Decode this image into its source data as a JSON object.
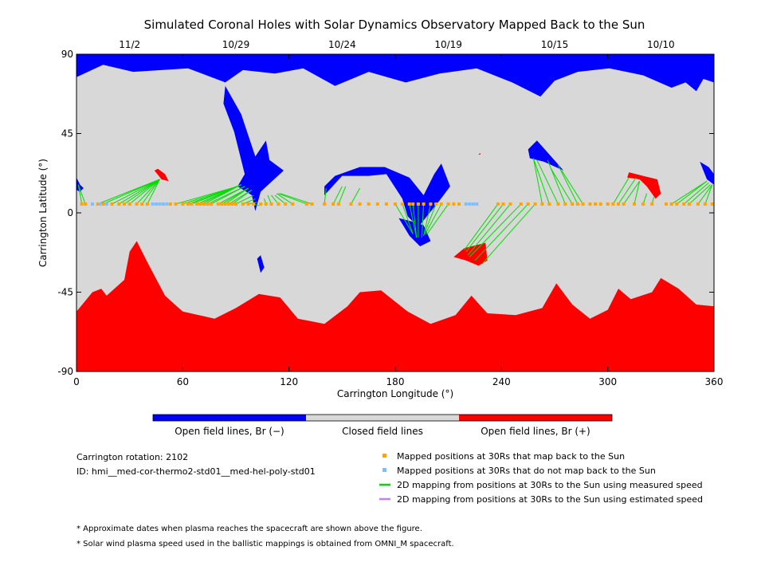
{
  "chart_data": {
    "type": "map",
    "title": "Simulated Coronal Holes with Solar Dynamics Observatory Mapped Back to the Sun",
    "xlabel": "Carrington Longitude (°)",
    "ylabel": "Carrington Latitude (°)",
    "xlim": [
      0,
      360
    ],
    "ylim": [
      -90,
      90
    ],
    "x_ticks": [
      0,
      60,
      120,
      180,
      240,
      300,
      360
    ],
    "y_ticks": [
      90,
      45,
      0,
      -45,
      -90
    ],
    "date_ticks": [
      {
        "label": "11/2",
        "lon": 30
      },
      {
        "label": "10/29",
        "lon": 90
      },
      {
        "label": "10/24",
        "lon": 150
      },
      {
        "label": "10/19",
        "lon": 210
      },
      {
        "label": "10/15",
        "lon": 270
      },
      {
        "label": "10/10",
        "lon": 330
      }
    ],
    "colors": {
      "open_negative": "#0000ff",
      "closed": "#d8d8d8",
      "open_positive": "#ff0000",
      "mapped_point": "#ffa500",
      "unmapped_point": "#80bfff",
      "measured_line": "#00dd00",
      "estimated_line": "#c080ff"
    },
    "colorbar": [
      {
        "label": "Open field lines, Br (−)",
        "color": "#0000ff"
      },
      {
        "label": "Closed field lines",
        "color": "#d8d8d8"
      },
      {
        "label": "Open field lines, Br (+)",
        "color": "#ff0000"
      }
    ],
    "regions": {
      "open_negative": [
        [
          [
            0,
            90
          ],
          [
            360,
            90
          ],
          [
            360,
            74
          ],
          [
            354,
            76
          ],
          [
            350,
            69
          ],
          [
            344,
            74
          ],
          [
            336,
            71
          ],
          [
            320,
            78
          ],
          [
            301,
            82
          ],
          [
            283,
            80
          ],
          [
            270,
            75
          ],
          [
            262,
            66
          ],
          [
            246,
            74
          ],
          [
            226,
            82
          ],
          [
            205,
            79
          ],
          [
            186,
            74
          ],
          [
            165,
            80
          ],
          [
            146,
            72
          ],
          [
            128,
            82
          ],
          [
            112,
            79
          ],
          [
            94,
            81
          ],
          [
            84,
            74
          ],
          [
            63,
            82
          ],
          [
            32,
            80
          ],
          [
            15,
            84
          ],
          [
            0,
            77
          ]
        ],
        [
          [
            84,
            72
          ],
          [
            93,
            56
          ],
          [
            101,
            32
          ],
          [
            107,
            41
          ],
          [
            109,
            30
          ],
          [
            117,
            24
          ],
          [
            104,
            12
          ],
          [
            101,
            1
          ],
          [
            99,
            10
          ],
          [
            91,
            15
          ],
          [
            95,
            22
          ],
          [
            89,
            46
          ],
          [
            83,
            62
          ]
        ],
        [
          [
            140,
            15
          ],
          [
            146,
            21
          ],
          [
            160,
            26
          ],
          [
            174,
            26
          ],
          [
            188,
            20
          ],
          [
            196,
            10
          ],
          [
            202,
            22
          ],
          [
            206,
            28
          ],
          [
            211,
            15
          ],
          [
            205,
            7
          ],
          [
            193,
            -8
          ],
          [
            187,
            -2
          ],
          [
            184,
            8
          ],
          [
            175,
            22
          ],
          [
            165,
            21
          ],
          [
            150,
            21
          ],
          [
            140,
            10
          ]
        ],
        [
          [
            182,
            -3
          ],
          [
            188,
            -13
          ],
          [
            194,
            -19
          ],
          [
            200,
            -16
          ],
          [
            196,
            -7
          ],
          [
            190,
            -5
          ]
        ],
        [
          [
            102,
            -26
          ],
          [
            104,
            -34
          ],
          [
            106,
            -31
          ],
          [
            104,
            -24
          ]
        ],
        [
          [
            255,
            36
          ],
          [
            260,
            41
          ],
          [
            268,
            32
          ],
          [
            275,
            24
          ],
          [
            264,
            29
          ],
          [
            256,
            31
          ]
        ],
        [
          [
            0,
            20
          ],
          [
            2,
            16
          ],
          [
            4,
            14
          ],
          [
            2,
            12
          ],
          [
            0,
            13
          ]
        ],
        [
          [
            352,
            29
          ],
          [
            356,
            19
          ],
          [
            360,
            16
          ],
          [
            360,
            22
          ],
          [
            357,
            26
          ]
        ]
      ],
      "open_positive": [
        [
          [
            0,
            -90
          ],
          [
            360,
            -90
          ],
          [
            360,
            -53
          ],
          [
            350,
            -52
          ],
          [
            340,
            -43
          ],
          [
            330,
            -37
          ],
          [
            325,
            -45
          ],
          [
            313,
            -49
          ],
          [
            306,
            -43
          ],
          [
            300,
            -55
          ],
          [
            290,
            -60
          ],
          [
            280,
            -52
          ],
          [
            271,
            -40
          ],
          [
            263,
            -54
          ],
          [
            248,
            -58
          ],
          [
            232,
            -57
          ],
          [
            223,
            -47
          ],
          [
            214,
            -58
          ],
          [
            200,
            -63
          ],
          [
            187,
            -56
          ],
          [
            172,
            -44
          ],
          [
            160,
            -45
          ],
          [
            153,
            -53
          ],
          [
            140,
            -63
          ],
          [
            125,
            -60
          ],
          [
            115,
            -48
          ],
          [
            103,
            -46
          ],
          [
            90,
            -54
          ],
          [
            78,
            -60
          ],
          [
            60,
            -56
          ],
          [
            50,
            -47
          ],
          [
            40,
            -28
          ],
          [
            34,
            -16
          ],
          [
            30,
            -22
          ],
          [
            27,
            -38
          ],
          [
            17,
            -47
          ],
          [
            14,
            -43
          ],
          [
            9,
            -45
          ],
          [
            0,
            -56
          ]
        ],
        [
          [
            219,
            -20
          ],
          [
            231,
            -17
          ],
          [
            232,
            -27
          ],
          [
            227,
            -30
          ],
          [
            220,
            -27
          ],
          [
            213,
            -25
          ]
        ],
        [
          [
            312,
            23
          ],
          [
            320,
            21
          ],
          [
            328,
            19
          ],
          [
            330,
            11
          ],
          [
            327,
            8
          ],
          [
            322,
            15
          ],
          [
            318,
            19
          ],
          [
            311,
            20
          ]
        ],
        [
          [
            44,
            24
          ],
          [
            46,
            25
          ],
          [
            50,
            22
          ],
          [
            52,
            18
          ],
          [
            48,
            19
          ]
        ],
        [
          [
            227,
            33
          ],
          [
            228,
            34
          ],
          [
            228,
            33
          ]
        ]
      ]
    },
    "mapped_points_lon": [
      3,
      5,
      12,
      15,
      20,
      24,
      27,
      30,
      34,
      37,
      40,
      53,
      56,
      60,
      63,
      65,
      68,
      70,
      72,
      74,
      76,
      80,
      82,
      84,
      86,
      88,
      90,
      94,
      97,
      100,
      104,
      107,
      110,
      114,
      118,
      122,
      130,
      133,
      140,
      145,
      148,
      155,
      160,
      165,
      170,
      175,
      180,
      184,
      188,
      190,
      193,
      196,
      200,
      203,
      206,
      210,
      213,
      216,
      238,
      241,
      245,
      251,
      255,
      259,
      263,
      267,
      272,
      276,
      280,
      283,
      286,
      290,
      293,
      296,
      300,
      303,
      306,
      309,
      315,
      320,
      325,
      333,
      336,
      339,
      343,
      346,
      351,
      355,
      359
    ],
    "unmapped_points_lon": [
      9,
      13,
      17,
      43,
      45,
      47,
      49,
      51,
      220,
      222,
      224,
      226
    ],
    "spacecraft_lat": 5,
    "measured_lines": [
      [
        3,
        5,
        1,
        16
      ],
      [
        5,
        5,
        1,
        16
      ],
      [
        12,
        5,
        47,
        19
      ],
      [
        15,
        5,
        47,
        19
      ],
      [
        20,
        5,
        47,
        19
      ],
      [
        24,
        5,
        47,
        19
      ],
      [
        27,
        5,
        47,
        19
      ],
      [
        30,
        5,
        47,
        19
      ],
      [
        34,
        5,
        47,
        19
      ],
      [
        37,
        5,
        47,
        19
      ],
      [
        40,
        5,
        47,
        19
      ],
      [
        56,
        5,
        91,
        15
      ],
      [
        60,
        5,
        91,
        15
      ],
      [
        63,
        5,
        91,
        15
      ],
      [
        65,
        5,
        93,
        16
      ],
      [
        68,
        5,
        93,
        16
      ],
      [
        70,
        5,
        93,
        16
      ],
      [
        72,
        5,
        93,
        16
      ],
      [
        74,
        5,
        95,
        15
      ],
      [
        76,
        5,
        95,
        15
      ],
      [
        80,
        5,
        97,
        14
      ],
      [
        82,
        5,
        97,
        14
      ],
      [
        84,
        5,
        97,
        14
      ],
      [
        86,
        5,
        99,
        13
      ],
      [
        88,
        5,
        99,
        13
      ],
      [
        90,
        5,
        100,
        10
      ],
      [
        94,
        5,
        101,
        8
      ],
      [
        97,
        5,
        102,
        6
      ],
      [
        100,
        5,
        103,
        4
      ],
      [
        104,
        5,
        104,
        4
      ],
      [
        107,
        5,
        106,
        8
      ],
      [
        110,
        5,
        108,
        10
      ],
      [
        114,
        5,
        110,
        10
      ],
      [
        118,
        5,
        112,
        10
      ],
      [
        122,
        5,
        113,
        11
      ],
      [
        130,
        5,
        114,
        11
      ],
      [
        133,
        5,
        115,
        11
      ],
      [
        140,
        5,
        141,
        14
      ],
      [
        145,
        5,
        150,
        15
      ],
      [
        148,
        5,
        152,
        15
      ],
      [
        155,
        5,
        160,
        14
      ],
      [
        180,
        5,
        190,
        -12
      ],
      [
        184,
        5,
        190,
        -12
      ],
      [
        188,
        5,
        192,
        -14
      ],
      [
        190,
        5,
        192,
        -14
      ],
      [
        193,
        5,
        193,
        -14
      ],
      [
        196,
        5,
        195,
        -14
      ],
      [
        200,
        5,
        196,
        -13
      ],
      [
        203,
        5,
        196,
        -13
      ],
      [
        206,
        5,
        197,
        -12
      ],
      [
        210,
        5,
        198,
        -12
      ],
      [
        238,
        5,
        219,
        -21
      ],
      [
        241,
        5,
        220,
        -22
      ],
      [
        245,
        5,
        221,
        -24
      ],
      [
        251,
        5,
        222,
        -25
      ],
      [
        255,
        5,
        225,
        -27
      ],
      [
        259,
        5,
        229,
        -29
      ],
      [
        263,
        5,
        258,
        31
      ],
      [
        267,
        5,
        258,
        31
      ],
      [
        272,
        5,
        260,
        30
      ],
      [
        276,
        5,
        266,
        30
      ],
      [
        280,
        5,
        268,
        25
      ],
      [
        283,
        5,
        272,
        27
      ],
      [
        286,
        5,
        274,
        24
      ],
      [
        303,
        5,
        312,
        20
      ],
      [
        306,
        5,
        316,
        20
      ],
      [
        309,
        5,
        318,
        18
      ],
      [
        315,
        5,
        318,
        18
      ],
      [
        320,
        5,
        322,
        11
      ],
      [
        325,
        5,
        326,
        9
      ],
      [
        336,
        5,
        356,
        18
      ],
      [
        339,
        5,
        356,
        18
      ],
      [
        343,
        5,
        357,
        17
      ],
      [
        346,
        5,
        358,
        16
      ],
      [
        351,
        5,
        359,
        16
      ],
      [
        355,
        5,
        359,
        16
      ]
    ],
    "legend": [
      {
        "type": "square",
        "color": "#ffa500",
        "label": "Mapped positions at 30Rs that map back to the Sun"
      },
      {
        "type": "square",
        "color": "#80bfff",
        "label": "Mapped positions at 30Rs that do not map back to the Sun"
      },
      {
        "type": "line",
        "color": "#00dd00",
        "label": "2D mapping from positions at 30Rs to the Sun using measured speed"
      },
      {
        "type": "line",
        "color": "#c080ff",
        "label": "2D mapping from positions at 30Rs to the Sun using estimated speed"
      }
    ]
  },
  "info": {
    "rotation": "Carrington rotation: 2102",
    "id": "ID: hmi__med-cor-thermo2-std01__med-hel-poly-std01"
  },
  "notes": [
    "* Approximate dates when plasma reaches the spacecraft are shown above the figure.",
    "* Solar wind plasma speed used in the ballistic mappings is obtained from OMNI_M spacecraft."
  ]
}
